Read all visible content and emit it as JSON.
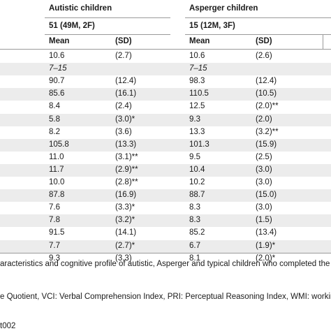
{
  "groups": [
    {
      "title": "Autistic children",
      "sample": "51 (49M, 2F)"
    },
    {
      "title": "Asperger children",
      "sample": "15 (12M, 3F)"
    }
  ],
  "columns": [
    "Mean",
    "(SD)",
    "Mean",
    "(SD)"
  ],
  "rows": [
    {
      "cells": [
        "10.6",
        "(2.7)",
        "10.6",
        "(2.6)"
      ],
      "italic": false
    },
    {
      "cells": [
        "7–15",
        "",
        "7–15",
        ""
      ],
      "italic": true
    },
    {
      "cells": [
        "90.7",
        "(12.4)",
        "98.3",
        "(12.4)"
      ],
      "italic": false
    },
    {
      "cells": [
        "85.6",
        "(16.1)",
        "110.5",
        "(10.5)"
      ],
      "italic": false
    },
    {
      "cells": [
        "8.4",
        "(2.4)",
        "12.5",
        "(2.0)**"
      ],
      "italic": false
    },
    {
      "cells": [
        "5.8",
        "(3.0)*",
        "9.3",
        "(2.0)"
      ],
      "italic": false
    },
    {
      "cells": [
        "8.2",
        "(3.6)",
        "13.3",
        "(3.2)**"
      ],
      "italic": false
    },
    {
      "cells": [
        "105.8",
        "(13.3)",
        "101.3",
        "(15.9)"
      ],
      "italic": false
    },
    {
      "cells": [
        "11.0",
        "(3.1)**",
        "9.5",
        "(2.5)"
      ],
      "italic": false
    },
    {
      "cells": [
        "11.7",
        "(2.9)**",
        "10.4",
        "(3.0)"
      ],
      "italic": false
    },
    {
      "cells": [
        "10.0",
        "(2.8)**",
        "10.2",
        "(3.0)"
      ],
      "italic": false
    },
    {
      "cells": [
        "87.8",
        "(16.9)",
        "88.7",
        "(15.0)"
      ],
      "italic": false
    },
    {
      "cells": [
        "7.6",
        "(3.3)*",
        "8.3",
        "(3.0)"
      ],
      "italic": false
    },
    {
      "cells": [
        "7.8",
        "(3.2)*",
        "8.3",
        "(1.5)"
      ],
      "italic": false
    },
    {
      "cells": [
        "91.5",
        "(14.1)",
        "85.2",
        "(13.4)"
      ],
      "italic": false
    },
    {
      "cells": [
        "7.7",
        "(2.7)*",
        "6.7",
        "(1.9)*"
      ],
      "italic": false
    },
    {
      "cells": [
        "9.3",
        "(3.3)",
        "8.1",
        "(2.0)*"
      ],
      "italic": false
    }
  ],
  "captions": [
    "aracteristics and cognitive profile of autistic, Asperger and typical children who completed the WISC-",
    "e Quotient, VCI: Verbal Comprehension Index, PRI: Perceptual Reasoning Index, WMI: working Me",
    "t002"
  ],
  "colors": {
    "shade": "#ececec",
    "rule": "#9a9a9a",
    "text": "#1a1a1a"
  }
}
